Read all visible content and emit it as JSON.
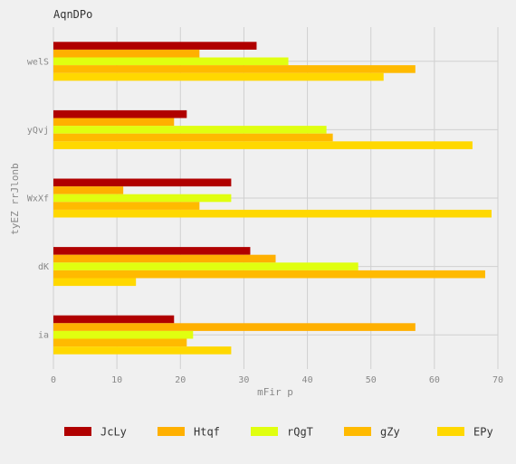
{
  "chart_data": {
    "type": "bar",
    "orientation": "horizontal",
    "title": "AqnDPo",
    "xlabel": "mFir p",
    "ylabel": "tyEZ rrJlonb",
    "xlim": [
      0,
      70
    ],
    "xticks": [
      0,
      10,
      20,
      30,
      40,
      50,
      60,
      70
    ],
    "grid": true,
    "legend_position": "bottom",
    "categories": [
      "welS",
      "yQvj",
      "WxXf",
      "dK",
      "ia"
    ],
    "series": [
      {
        "name": "JcLy",
        "color": "#b00000",
        "values": [
          32,
          21,
          28,
          31,
          19
        ]
      },
      {
        "name": "Htqf",
        "color": "#ffb000",
        "values": [
          23,
          19,
          11,
          35,
          57
        ]
      },
      {
        "name": "rQgT",
        "color": "#e0ff10",
        "values": [
          37,
          43,
          28,
          48,
          22
        ]
      },
      {
        "name": "gZy",
        "color": "#ffba00",
        "values": [
          57,
          44,
          23,
          68,
          21
        ]
      },
      {
        "name": "EPy",
        "color": "#ffd800",
        "values": [
          52,
          66,
          69,
          13,
          28
        ]
      }
    ]
  }
}
